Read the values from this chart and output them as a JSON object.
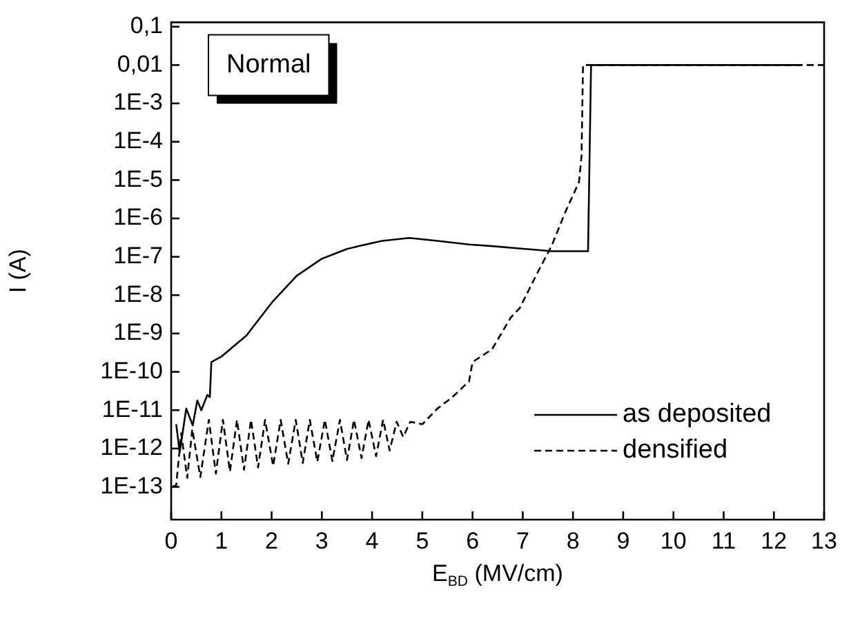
{
  "chart_data": {
    "type": "line",
    "xlabel": "E$_{BD}$ (MV/cm)",
    "ylabel": "I (A)",
    "log": "y",
    "legend": "bottom right",
    "annotations": [
      "Normal"
    ],
    "xlim": [
      0,
      13
    ],
    "xticks": [
      0,
      1,
      2,
      3,
      4,
      5,
      6,
      7,
      8,
      9,
      10,
      11,
      12,
      13
    ],
    "ylim": [
      1.4e-14,
      0.13
    ],
    "yticks": [
      {
        "value": 0.1,
        "label": "0,1"
      },
      {
        "value": 0.01,
        "label": "0,01"
      },
      {
        "value": 0.001,
        "label": "1E-3"
      },
      {
        "value": 0.0001,
        "label": "1E-4"
      },
      {
        "value": 1e-05,
        "label": "1E-5"
      },
      {
        "value": 1e-06,
        "label": "1E-6"
      },
      {
        "value": 1e-07,
        "label": "1E-7"
      },
      {
        "value": 1e-08,
        "label": "1E-8"
      },
      {
        "value": 1e-09,
        "label": "1E-9"
      },
      {
        "value": 1e-10,
        "label": "1E-10"
      },
      {
        "value": 1e-11,
        "label": "1E-11"
      },
      {
        "value": 1e-12,
        "label": "1E-12"
      },
      {
        "value": 1e-13,
        "label": "1E-13"
      }
    ],
    "series": [
      {
        "name": "as deposited",
        "color": "#000000",
        "line_style": "solid",
        "x": [
          0.1,
          0.17,
          0.3,
          0.43,
          0.52,
          0.6,
          0.72,
          0.77,
          0.8,
          1.0,
          1.5,
          2.0,
          2.5,
          3.0,
          3.5,
          3.74,
          4.2,
          4.74,
          5.3,
          5.93,
          6.39,
          7.58,
          8.3,
          8.36,
          12.53
        ],
        "values": [
          4.3e-12,
          7.9e-13,
          1.1e-11,
          4e-12,
          1.8e-11,
          1e-11,
          2.5e-11,
          2.2e-11,
          1.8e-10,
          2.5e-10,
          8.9e-10,
          6.3e-09,
          3.2e-08,
          8.9e-08,
          1.6e-07,
          1.9e-07,
          2.6e-07,
          3.1e-07,
          2.6e-07,
          2.1e-07,
          1.9e-07,
          1.4e-07,
          1.4e-07,
          0.01,
          0.01
        ]
      },
      {
        "name": "densified",
        "color": "#000000",
        "line_style": "dashed",
        "x": [
          0.02,
          0.1,
          0.2,
          0.32,
          0.42,
          0.58,
          0.75,
          0.89,
          1.03,
          1.17,
          1.31,
          1.45,
          1.59,
          1.73,
          1.87,
          2.03,
          2.18,
          2.33,
          2.48,
          2.62,
          2.76,
          2.91,
          3.06,
          3.21,
          3.36,
          3.5,
          3.64,
          3.79,
          3.93,
          4.08,
          4.22,
          4.35,
          4.49,
          4.62,
          4.76,
          5.0,
          5.3,
          5.6,
          5.85,
          5.93,
          6.0,
          6.39,
          6.76,
          6.94,
          7.3,
          7.58,
          7.85,
          8.12,
          8.17,
          8.2,
          12.99
        ],
        "values": [
          1e-13,
          1.1e-13,
          2.5e-12,
          1.7e-13,
          3.2e-12,
          1.8e-13,
          5.6e-12,
          2.2e-13,
          5.6e-12,
          2.5e-13,
          5.6e-12,
          2.8e-13,
          5.6e-12,
          3.2e-13,
          5.6e-12,
          3.5e-13,
          5.6e-12,
          4e-13,
          5.6e-12,
          4.2e-13,
          5.6e-12,
          4.5e-13,
          5.6e-12,
          4.7e-13,
          5.6e-12,
          5e-13,
          5.6e-12,
          5.6e-13,
          5.6e-12,
          6.3e-13,
          5.6e-12,
          8.9e-13,
          5e-12,
          2e-12,
          5e-12,
          4.3e-12,
          1.1e-11,
          2.2e-11,
          4.5e-11,
          5.5e-11,
          1.8e-10,
          3.9e-10,
          2.6e-09,
          4.6e-09,
          4e-08,
          2e-07,
          1.5e-06,
          8.9e-06,
          4.2e-05,
          0.01,
          0.01
        ]
      }
    ]
  }
}
